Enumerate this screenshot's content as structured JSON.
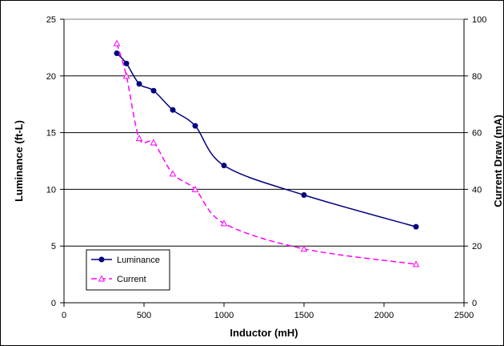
{
  "chart_data": {
    "type": "line",
    "title": "",
    "xlabel": "Inductor (mH)",
    "ylabel": "Luminance (ft-L)",
    "y2label": "Current Draw (mA)",
    "xlim": [
      0,
      2500
    ],
    "ylim": [
      0,
      25
    ],
    "y2lim": [
      0,
      100
    ],
    "x_ticks": [
      "0",
      "500",
      "1000",
      "1500",
      "2000",
      "2500"
    ],
    "y_ticks": [
      "0",
      "5",
      "10",
      "15",
      "20",
      "25"
    ],
    "y2_ticks": [
      "0",
      "20",
      "40",
      "60",
      "80",
      "100"
    ],
    "grid": "horizontal",
    "legend_position": "bottom-left",
    "series": [
      {
        "name": "Luminance",
        "axis": "left",
        "color": "#000080",
        "marker": "filled-circle",
        "line": "solid",
        "x": [
          330,
          390,
          470,
          560,
          680,
          820,
          1000,
          1500,
          2200
        ],
        "values": [
          22.0,
          21.1,
          19.3,
          18.7,
          17.0,
          15.6,
          12.1,
          9.5,
          6.7
        ]
      },
      {
        "name": "Current",
        "axis": "right",
        "color": "#ff00ff",
        "marker": "open-triangle",
        "line": "dashed",
        "x": [
          330,
          390,
          470,
          560,
          680,
          820,
          1000,
          1500,
          2200
        ],
        "values": [
          91.5,
          80.0,
          58.0,
          56.5,
          45.5,
          40.0,
          28.0,
          19.0,
          13.6
        ]
      }
    ]
  }
}
